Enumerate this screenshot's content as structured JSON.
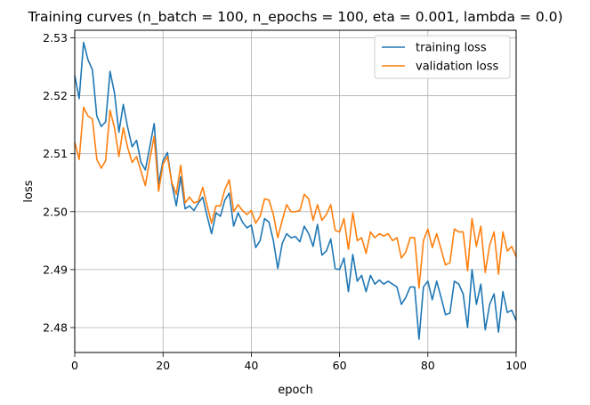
{
  "chart_data": {
    "type": "line",
    "title": "Training curves (n_batch = 100, n_epochs = 100, eta = 0.001, lambda = 0.0)",
    "xlabel": "epoch",
    "ylabel": "loss",
    "xlim": [
      0,
      100
    ],
    "ylim": [
      2.4757,
      2.5313
    ],
    "xticks": [
      0,
      20,
      40,
      60,
      80,
      100
    ],
    "yticks": [
      2.48,
      2.49,
      2.5,
      2.51,
      2.52,
      2.53
    ],
    "xtick_labels": [
      "0",
      "20",
      "40",
      "60",
      "80",
      "100"
    ],
    "ytick_labels": [
      "2.48",
      "2.49",
      "2.50",
      "2.51",
      "2.52",
      "2.53"
    ],
    "grid": true,
    "legend_position": "top-right",
    "series": [
      {
        "name": "training loss",
        "color": "#1f77b4",
        "values": [
          2.5235,
          2.5195,
          2.5292,
          2.5262,
          2.5245,
          2.5165,
          2.5147,
          2.5155,
          2.5242,
          2.5205,
          2.5137,
          2.5185,
          2.5145,
          2.5112,
          2.5123,
          2.5085,
          2.5072,
          2.5112,
          2.5152,
          2.5048,
          2.5088,
          2.5102,
          2.5048,
          2.501,
          2.506,
          2.5005,
          2.501,
          2.5002,
          2.5015,
          2.5025,
          2.4992,
          2.4962,
          2.4998,
          2.4992,
          2.502,
          2.5032,
          2.4975,
          2.4998,
          2.4982,
          2.4972,
          2.4977,
          2.4938,
          2.495,
          2.4988,
          2.4982,
          2.495,
          2.4902,
          2.4945,
          2.4962,
          2.4955,
          2.4957,
          2.4948,
          2.4975,
          2.4962,
          2.494,
          2.4978,
          2.4925,
          2.4932,
          2.4953,
          2.4902,
          2.49,
          2.492,
          2.4862,
          2.4926,
          2.488,
          2.489,
          2.4862,
          2.489,
          2.4875,
          2.4882,
          2.4875,
          2.488,
          2.4875,
          2.487,
          2.484,
          2.4852,
          2.487,
          2.487,
          2.478,
          2.487,
          2.488,
          2.4848,
          2.488,
          2.4852,
          2.4822,
          2.4825,
          2.488,
          2.4875,
          2.4858,
          2.48,
          2.49,
          2.484,
          2.4875,
          2.4796,
          2.484,
          2.4858,
          2.4792,
          2.4862,
          2.4826,
          2.483,
          2.4812
        ]
      },
      {
        "name": "validation loss",
        "color": "#ff7f0e",
        "values": [
          2.512,
          2.509,
          2.518,
          2.5165,
          2.516,
          2.509,
          2.5075,
          2.5088,
          2.5175,
          2.5145,
          2.5095,
          2.5145,
          2.511,
          2.5085,
          2.5095,
          2.507,
          2.5045,
          2.509,
          2.513,
          2.5035,
          2.5082,
          2.5095,
          2.505,
          2.503,
          2.508,
          2.5015,
          2.5025,
          2.5015,
          2.5018,
          2.5042,
          2.501,
          2.498,
          2.501,
          2.501,
          2.5038,
          2.5055,
          2.5,
          2.5012,
          2.5002,
          2.4995,
          2.5002,
          2.498,
          2.4992,
          2.5022,
          2.502,
          2.4995,
          2.4955,
          2.4985,
          2.5012,
          2.5,
          2.5,
          2.5002,
          2.503,
          2.5022,
          2.4985,
          2.5012,
          2.4985,
          2.4995,
          2.5012,
          2.4968,
          2.4965,
          2.4988,
          2.4935,
          2.4998,
          2.495,
          2.4955,
          2.4928,
          2.4965,
          2.4955,
          2.4962,
          2.4958,
          2.4962,
          2.495,
          2.4955,
          2.492,
          2.493,
          2.4955,
          2.4955,
          2.4868,
          2.495,
          2.497,
          2.4938,
          2.4962,
          2.4935,
          2.4908,
          2.4912,
          2.497,
          2.4965,
          2.4965,
          2.4898,
          2.4988,
          2.494,
          2.4975,
          2.4895,
          2.4942,
          2.4965,
          2.4892,
          2.4965,
          2.4932,
          2.494,
          2.4922
        ]
      }
    ]
  }
}
